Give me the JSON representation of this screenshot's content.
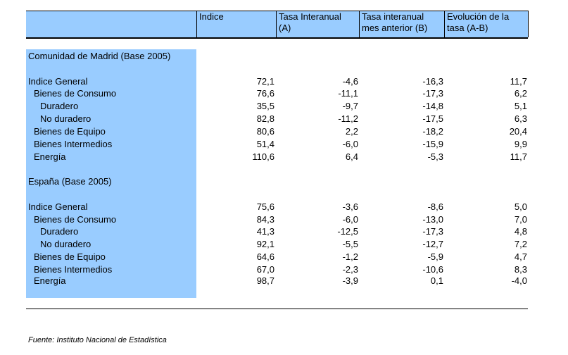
{
  "header": {
    "col1": "",
    "col2": "Indice",
    "col3_line1": "Tasa Interanual",
    "col3_line2": "(A)",
    "col4_line1": "Tasa interanual",
    "col4_line2": "mes anterior (B)",
    "col5_line1": "Evolución de la",
    "col5_line2": "tasa (A-B)"
  },
  "madrid": {
    "title": "Comunidad de Madrid (Base 2005)",
    "rows": [
      {
        "label": "Indice General",
        "indice": "72,1",
        "a": "-4,6",
        "b": "-16,3",
        "ab": "11,7"
      },
      {
        "label": "Bienes de Consumo",
        "indice": "76,6",
        "a": "-11,1",
        "b": "-17,3",
        "ab": "6,2"
      },
      {
        "label": "Duradero",
        "indice": "35,5",
        "a": "-9,7",
        "b": "-14,8",
        "ab": "5,1"
      },
      {
        "label": "No duradero",
        "indice": "82,8",
        "a": "-11,2",
        "b": "-17,5",
        "ab": "6,3"
      },
      {
        "label": "Bienes de Equipo",
        "indice": "80,6",
        "a": "2,2",
        "b": "-18,2",
        "ab": "20,4"
      },
      {
        "label": "Bienes Intermedios",
        "indice": "51,4",
        "a": "-6,0",
        "b": "-15,9",
        "ab": "9,9"
      },
      {
        "label": "Energía",
        "indice": "110,6",
        "a": "6,4",
        "b": "-5,3",
        "ab": "11,7"
      }
    ]
  },
  "espana": {
    "title": "España (Base 2005)",
    "rows": [
      {
        "label": "Indice General",
        "indice": "75,6",
        "a": "-3,6",
        "b": "-8,6",
        "ab": "5,0"
      },
      {
        "label": "Bienes de Consumo",
        "indice": "84,3",
        "a": "-6,0",
        "b": "-13,0",
        "ab": "7,0"
      },
      {
        "label": "Duradero",
        "indice": "41,3",
        "a": "-12,5",
        "b": "-17,3",
        "ab": "4,8"
      },
      {
        "label": "No duradero",
        "indice": "92,1",
        "a": "-5,5",
        "b": "-12,7",
        "ab": "7,2"
      },
      {
        "label": "Bienes de Equipo",
        "indice": "64,6",
        "a": "-1,2",
        "b": "-5,9",
        "ab": "4,7"
      },
      {
        "label": "Bienes Intermedios",
        "indice": "67,0",
        "a": "-2,3",
        "b": "-10,6",
        "ab": "8,3"
      },
      {
        "label": "Energía",
        "indice": "98,7",
        "a": "-3,9",
        "b": "0,1",
        "ab": "-4,0"
      }
    ]
  },
  "source": "Fuente: Instituto Nacional de Estadística"
}
